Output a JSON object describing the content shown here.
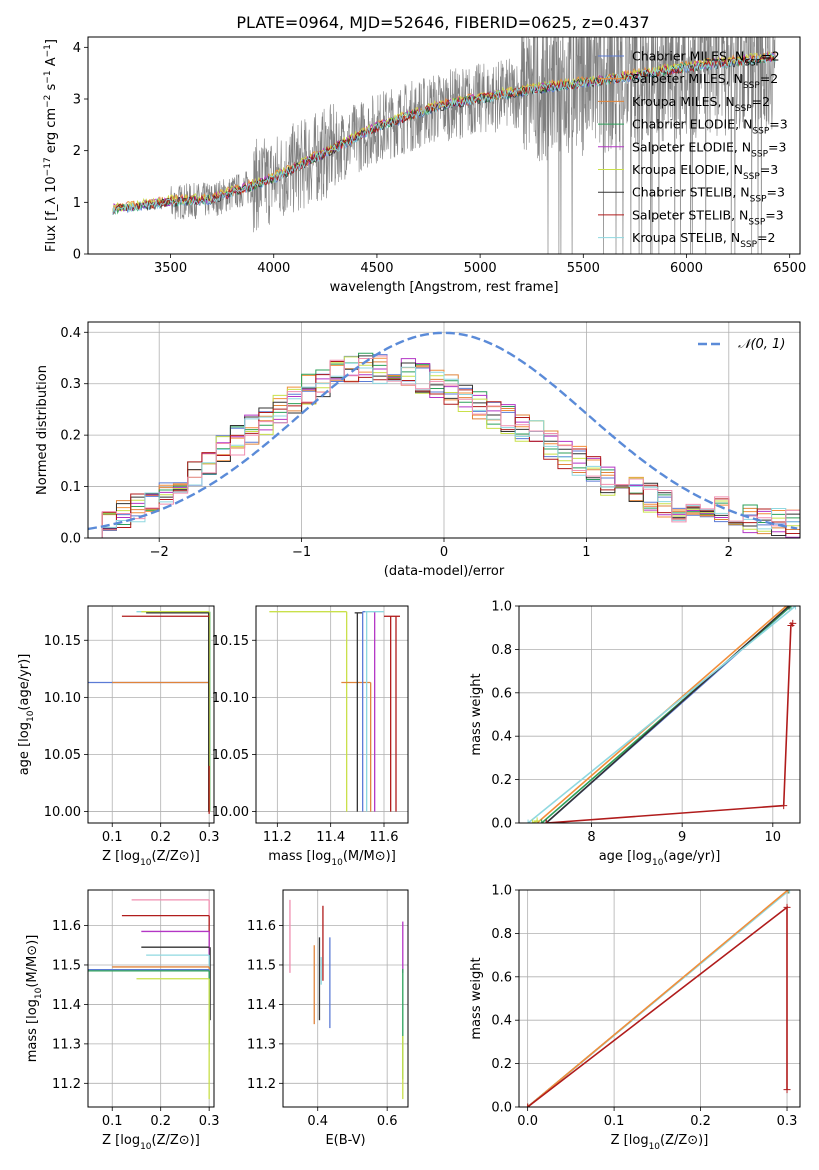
{
  "chart_data": [
    {
      "type": "line",
      "title": "PLATE=0964, MJD=52646, FIBERID=0625, z=0.437",
      "xlabel": "wavelength [Angstrom, rest frame]",
      "ylabel": "Flux [f_λ 10^-17 erg cm^-2 s^-1 A^-1]",
      "xlim": [
        3100,
        6550
      ],
      "ylim": [
        0,
        4.2
      ],
      "xticks": [
        "3500",
        "4000",
        "4500",
        "5000",
        "5500",
        "6000",
        "6500"
      ],
      "yticks": [
        "0",
        "1",
        "2",
        "3",
        "4"
      ],
      "grid": false,
      "legend_position": "upper-right",
      "data_series": {
        "name": "",
        "color": "#808080",
        "x_range": [
          3220,
          6430
        ],
        "note_values": [
          0.0,
          1.0,
          1.05,
          1.2,
          1.7,
          2.0,
          2.4,
          2.6,
          3.0,
          3.1,
          3.3,
          3.5,
          3.7,
          3.8
        ]
      },
      "series": [
        {
          "name": "Chabrier MILES, N_SSP=2",
          "color": "#5b7bd5",
          "x": [
            3220,
            3500,
            3700,
            4000,
            4250,
            4500,
            4800,
            5000,
            5300,
            5600,
            6000,
            6430
          ],
          "y": [
            0.85,
            1.0,
            1.05,
            1.45,
            1.95,
            2.45,
            2.85,
            3.0,
            3.2,
            3.35,
            3.6,
            3.8
          ]
        },
        {
          "name": "Salpeter MILES, N_SSP=2",
          "color": "#f28e3a",
          "x": [
            3220,
            3500,
            3700,
            4000,
            4250,
            4500,
            4800,
            5000,
            5300,
            5600,
            6000,
            6430
          ],
          "y": [
            0.85,
            1.02,
            1.07,
            1.5,
            2.0,
            2.5,
            2.9,
            3.05,
            3.25,
            3.4,
            3.65,
            3.85
          ]
        },
        {
          "name": "Kroupa MILES, N_SSP=2",
          "color": "#e0843b",
          "x": [
            3220,
            3500,
            3700,
            4000,
            4250,
            4500,
            4800,
            5000,
            5300,
            5600,
            6000,
            6430
          ],
          "y": [
            0.85,
            1.0,
            1.06,
            1.48,
            1.97,
            2.47,
            2.88,
            3.02,
            3.22,
            3.38,
            3.62,
            3.82
          ]
        },
        {
          "name": "Chabrier ELODIE, N_SSP=3",
          "color": "#2ca05a",
          "x": [
            3220,
            3500,
            3700,
            4000,
            4250,
            4500,
            4800,
            5000,
            5300,
            5600,
            6000,
            6430
          ],
          "y": [
            0.85,
            1.0,
            1.05,
            1.46,
            1.96,
            2.46,
            2.86,
            3.0,
            3.2,
            3.36,
            3.6,
            3.8
          ]
        },
        {
          "name": "Salpeter ELODIE, N_SSP=3",
          "color": "#b336c5",
          "x": [
            3220,
            3500,
            3700,
            4000,
            4250,
            4500,
            4800,
            5000,
            5300,
            5600,
            6000,
            6430
          ],
          "y": [
            0.85,
            1.0,
            1.05,
            1.47,
            1.98,
            2.47,
            2.87,
            3.02,
            3.22,
            3.37,
            3.62,
            3.82
          ]
        },
        {
          "name": "Kroupa ELODIE, N_SSP=3",
          "color": "#c9e04a",
          "x": [
            3220,
            3500,
            3700,
            4000,
            4250,
            4500,
            4800,
            5000,
            5300,
            5600,
            6000,
            6430
          ],
          "y": [
            0.85,
            1.02,
            1.07,
            1.5,
            2.0,
            2.5,
            2.9,
            3.05,
            3.25,
            3.4,
            3.65,
            3.85
          ]
        },
        {
          "name": "Chabrier STELIB, N_SSP=3",
          "color": "#333333",
          "x": [
            3220,
            3500,
            3700,
            4000,
            4250,
            4500,
            4800,
            5000,
            5300,
            5600,
            6000,
            6430
          ],
          "y": [
            0.85,
            1.0,
            1.05,
            1.45,
            1.95,
            2.45,
            2.85,
            3.0,
            3.2,
            3.35,
            3.6,
            3.8
          ]
        },
        {
          "name": "Salpeter STELIB, N_SSP=3",
          "color": "#b01c1c",
          "x": [
            3220,
            3500,
            3700,
            4000,
            4250,
            4500,
            4800,
            5000,
            5300,
            5600,
            6000,
            6430
          ],
          "y": [
            0.85,
            1.0,
            1.05,
            1.46,
            1.96,
            2.46,
            2.86,
            3.01,
            3.21,
            3.36,
            3.61,
            3.81
          ]
        },
        {
          "name": "Kroupa STELIB, N_SSP=2",
          "color": "#8fd8e0",
          "x": [
            3220,
            3500,
            3700,
            4000,
            4250,
            4500,
            4800,
            5000,
            5300,
            5600,
            6000,
            6430
          ],
          "y": [
            0.85,
            1.0,
            1.05,
            1.45,
            1.95,
            2.45,
            2.85,
            3.0,
            3.2,
            3.35,
            3.6,
            3.8
          ]
        }
      ]
    },
    {
      "type": "line",
      "xlabel": "(data-model)/error",
      "ylabel": "Normed distribution",
      "xlim": [
        -2.5,
        2.5
      ],
      "ylim": [
        0,
        0.42
      ],
      "xticks": [
        "−2",
        "−1",
        "0",
        "1",
        "2"
      ],
      "yticks": [
        "0.0",
        "0.1",
        "0.2",
        "0.3",
        "0.4"
      ],
      "grid": true,
      "legend_position": "upper-right",
      "legend": [
        "𝒩(0, 1)"
      ],
      "gaussian": {
        "mean": 0,
        "sigma": 1,
        "color": "#5b8bd8",
        "style": "dashed"
      },
      "histograms": {
        "bin_edges_range": [
          -2.5,
          2.5
        ],
        "bin_width": 0.1,
        "colors": [
          "#5b7bd5",
          "#f28e3a",
          "#e0843b",
          "#2ca05a",
          "#b336c5",
          "#c9e04a",
          "#333333",
          "#b01c1c",
          "#8fd8e0",
          "#f08fb0"
        ],
        "center_values": [
          0.02,
          0.04,
          0.05,
          0.06,
          0.08,
          0.09,
          0.11,
          0.13,
          0.15,
          0.17,
          0.19,
          0.21,
          0.23,
          0.25,
          0.27,
          0.29,
          0.3,
          0.32,
          0.33,
          0.33,
          0.33,
          0.33,
          0.32,
          0.31,
          0.3,
          0.29,
          0.27,
          0.26,
          0.24,
          0.23,
          0.21,
          0.2,
          0.18,
          0.16,
          0.15,
          0.13,
          0.11,
          0.1,
          0.09,
          0.08,
          0.07,
          0.06,
          0.05,
          0.05,
          0.05,
          0.04,
          0.04,
          0.03,
          0.03,
          0.03
        ]
      }
    },
    {
      "type": "line",
      "xlabel": "Z [log10(Z/Z⊙)]",
      "ylabel": "age  [log10(age/yr)]",
      "xlim": [
        0.05,
        0.31
      ],
      "ylim": [
        9.99,
        10.18
      ],
      "xticks": [
        "0.1",
        "0.2",
        "0.3"
      ],
      "yticks": [
        "10.00",
        "10.05",
        "10.10",
        "10.15"
      ],
      "grid": true,
      "segments": [
        {
          "color": "#5b7bd5",
          "h": [
            0.05,
            0.3,
            10.113
          ],
          "v": [
            0.3,
            10.0,
            10.175
          ]
        },
        {
          "color": "#e0843b",
          "h": [
            0.1,
            0.3,
            10.113
          ],
          "v": [
            0.3,
            10.0,
            10.113
          ]
        },
        {
          "color": "#8fd8e0",
          "h": [
            0.15,
            0.3,
            10.175
          ],
          "v": [
            0.302,
            10.0,
            10.175
          ]
        },
        {
          "color": "#c9e04a",
          "h": [
            0.16,
            0.3,
            10.175
          ],
          "v": [
            0.301,
            10.0,
            10.175
          ]
        },
        {
          "color": "#333333",
          "h": [
            0.17,
            0.3,
            10.174
          ],
          "v": [
            0.299,
            10.0,
            10.174
          ]
        },
        {
          "color": "#b01c1c",
          "h": [
            0.12,
            0.3,
            10.171
          ],
          "v": [
            0.3,
            9.998,
            10.04
          ]
        }
      ]
    },
    {
      "type": "line",
      "xlabel": "mass [log10(M/M⊙)]",
      "xlim": [
        11.12,
        11.69
      ],
      "ylim": [
        9.99,
        10.18
      ],
      "xticks": [
        "11.2",
        "11.4",
        "11.6"
      ],
      "yticks": [
        "10.00",
        "10.05",
        "10.10",
        "10.15"
      ],
      "grid": true,
      "segments": [
        {
          "color": "#c9e04a",
          "h": [
            11.17,
            11.46,
            10.175
          ],
          "v": [
            11.46,
            10.0,
            10.175
          ]
        },
        {
          "color": "#e0843b",
          "h": [
            11.44,
            11.55,
            10.113
          ],
          "v": [
            11.55,
            10.0,
            10.113
          ]
        },
        {
          "color": "#333333",
          "h": [
            11.49,
            11.52,
            10.174
          ],
          "v": [
            11.5,
            10.0,
            10.174
          ]
        },
        {
          "color": "#5b7bd5",
          "h": [
            11.52,
            11.53,
            10.175
          ],
          "v": [
            11.52,
            10.0,
            10.175
          ]
        },
        {
          "color": "#b336c5",
          "h": [
            11.56,
            11.57,
            10.175
          ],
          "v": [
            11.565,
            10.0,
            10.175
          ]
        },
        {
          "color": "#8fd8e0",
          "h": [
            11.53,
            11.6,
            10.175
          ],
          "v": [
            11.535,
            10.0,
            10.175
          ]
        },
        {
          "color": "#b01c1c",
          "h": [
            11.6,
            11.66,
            10.171
          ],
          "v": [
            11.625,
            10.0,
            10.171
          ]
        },
        {
          "color": "#b01c1c",
          "h": [
            11.6,
            11.6,
            10.171
          ],
          "v": [
            11.645,
            10.0,
            10.171
          ]
        }
      ]
    },
    {
      "type": "line",
      "xlabel": "age  [log10(age/yr)]",
      "ylabel": "mass weight",
      "xlim": [
        7.2,
        10.3
      ],
      "ylim": [
        0,
        1.0
      ],
      "xticks": [
        "8",
        "9",
        "10"
      ],
      "yticks": [
        "0.0",
        "0.2",
        "0.4",
        "0.6",
        "0.8",
        "1.0"
      ],
      "grid": true,
      "series": [
        {
          "name": "",
          "color": "#5b7bd5",
          "x": [
            7.5,
            10.2
          ],
          "y": [
            0.0,
            1.0
          ]
        },
        {
          "name": "",
          "color": "#f28e3a",
          "x": [
            7.4,
            10.15
          ],
          "y": [
            0.0,
            1.0
          ]
        },
        {
          "name": "",
          "color": "#2ca05a",
          "x": [
            7.45,
            10.2
          ],
          "y": [
            0.0,
            1.0
          ]
        },
        {
          "name": "",
          "color": "#333333",
          "x": [
            7.5,
            10.18
          ],
          "y": [
            0.0,
            1.0
          ]
        },
        {
          "name": "",
          "color": "#8fd8e0",
          "x": [
            7.3,
            10.25
          ],
          "y": [
            0.0,
            1.0
          ]
        },
        {
          "name": "",
          "color": "#c9e04a",
          "x": [
            7.35,
            7.4
          ],
          "y": [
            0.0,
            0.01
          ]
        },
        {
          "name": "",
          "color": "#b01c1c",
          "x": [
            7.5,
            10.12,
            10.2,
            10.22
          ],
          "y": [
            0.0,
            0.08,
            0.91,
            0.92
          ]
        }
      ]
    },
    {
      "type": "line",
      "xlabel": "Z [log10(Z/Z⊙)]",
      "ylabel": "mass [log10(M/M⊙)]",
      "xlim": [
        0.05,
        0.31
      ],
      "ylim": [
        11.14,
        11.69
      ],
      "xticks": [
        "0.1",
        "0.2",
        "0.3"
      ],
      "yticks": [
        "11.2",
        "11.3",
        "11.4",
        "11.5",
        "11.6"
      ],
      "grid": true,
      "segments": [
        {
          "color": "#f08fb0",
          "h": [
            0.14,
            0.3,
            11.665
          ],
          "v": [
            0.3,
            11.6,
            11.665
          ]
        },
        {
          "color": "#b01c1c",
          "h": [
            0.12,
            0.3,
            11.625
          ],
          "v": [
            0.3,
            11.36,
            11.625
          ]
        },
        {
          "color": "#b336c5",
          "h": [
            0.16,
            0.3,
            11.585
          ],
          "v": [
            0.3,
            11.5,
            11.585
          ]
        },
        {
          "color": "#333333",
          "h": [
            0.16,
            0.3,
            11.545
          ],
          "v": [
            0.302,
            11.36,
            11.545
          ]
        },
        {
          "color": "#8fd8e0",
          "h": [
            0.17,
            0.3,
            11.525
          ],
          "v": [
            0.3,
            11.28,
            11.525
          ]
        },
        {
          "color": "#e0843b",
          "h": [
            0.1,
            0.3,
            11.495
          ],
          "v": [
            0.3,
            11.4,
            11.495
          ]
        },
        {
          "color": "#5b7bd5",
          "h": [
            0.05,
            0.3,
            11.488
          ],
          "v": [
            0.3,
            11.35,
            11.488
          ]
        },
        {
          "color": "#2ca05a",
          "h": [
            0.05,
            0.3,
            11.485
          ],
          "v": [
            0.3,
            11.3,
            11.485
          ]
        },
        {
          "color": "#c9e04a",
          "h": [
            0.15,
            0.3,
            11.465
          ],
          "v": [
            0.3,
            11.16,
            11.465
          ]
        }
      ]
    },
    {
      "type": "line",
      "xlabel": "E(B-V)",
      "xlim": [
        0.3,
        0.66
      ],
      "ylim": [
        11.14,
        11.69
      ],
      "xticks": [
        "0.4",
        "0.6"
      ],
      "yticks": [
        "11.2",
        "11.3",
        "11.4",
        "11.5",
        "11.6"
      ],
      "grid": true,
      "segments": [
        {
          "color": "#f08fb0",
          "v": [
            0.32,
            11.48,
            11.665
          ]
        },
        {
          "color": "#e0843b",
          "v": [
            0.39,
            11.35,
            11.55
          ]
        },
        {
          "color": "#333333",
          "v": [
            0.405,
            11.36,
            11.57
          ]
        },
        {
          "color": "#8fd8e0",
          "v": [
            0.41,
            11.45,
            11.52
          ]
        },
        {
          "color": "#b01c1c",
          "v": [
            0.415,
            11.46,
            11.65
          ]
        },
        {
          "color": "#5b7bd5",
          "v": [
            0.435,
            11.34,
            11.57
          ]
        },
        {
          "color": "#b336c5",
          "v": [
            0.645,
            11.48,
            11.61
          ]
        },
        {
          "color": "#2ca05a",
          "v": [
            0.645,
            11.21,
            11.49
          ]
        },
        {
          "color": "#c9e04a",
          "v": [
            0.645,
            11.16,
            11.32
          ]
        }
      ]
    },
    {
      "type": "line",
      "xlabel": "Z [log10(Z/Z⊙)]",
      "ylabel": "mass weight",
      "xlim": [
        -0.01,
        0.315
      ],
      "ylim": [
        0,
        1.0
      ],
      "xticks": [
        "0.0",
        "0.1",
        "0.2",
        "0.3"
      ],
      "yticks": [
        "0.0",
        "0.2",
        "0.4",
        "0.6",
        "0.8",
        "1.0"
      ],
      "grid": true,
      "series": [
        {
          "name": "",
          "color": "#5b7bd5",
          "x": [
            0.0,
            0.302
          ],
          "y": [
            0.0,
            1.0
          ]
        },
        {
          "name": "",
          "color": "#2ca05a",
          "x": [
            0.0,
            0.302
          ],
          "y": [
            0.0,
            1.0
          ]
        },
        {
          "name": "",
          "color": "#8fd8e0",
          "x": [
            0.0,
            0.303
          ],
          "y": [
            0.0,
            1.0
          ]
        },
        {
          "name": "",
          "color": "#f28e3a",
          "x": [
            0.0,
            0.301
          ],
          "y": [
            0.0,
            1.0
          ]
        },
        {
          "name": "",
          "color": "#b01c1c",
          "x": [
            0.0,
            0.3,
            0.3
          ],
          "y": [
            0.0,
            0.92,
            0.08
          ]
        }
      ]
    }
  ]
}
